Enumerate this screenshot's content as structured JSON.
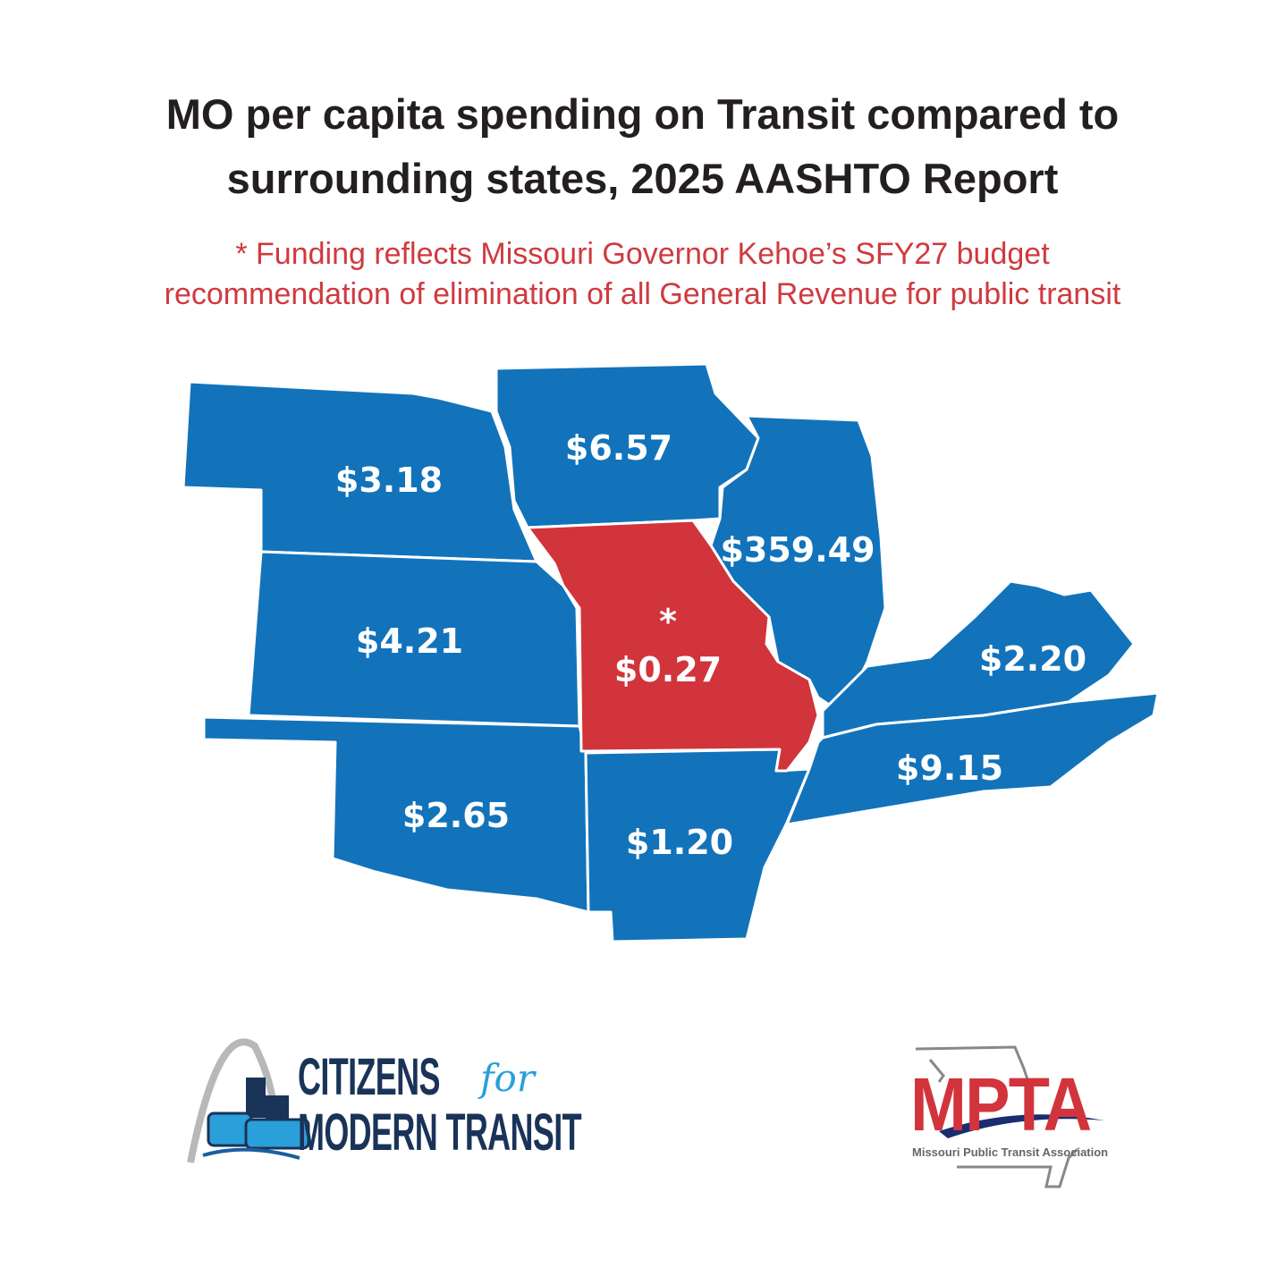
{
  "title_line1": "MO per capita spending on Transit compared to",
  "title_line2": "surrounding states, 2025 AASHTO Report",
  "subtitle_line1": "* Funding reflects Missouri Governor Kehoe’s SFY27 budget",
  "subtitle_line2": "recommendation of elimination of all General Revenue for public transit",
  "colors": {
    "state_fill": "#1273bb",
    "missouri_fill": "#d1343a",
    "title": "#231f20",
    "subtitle": "#cf3a3f"
  },
  "states": [
    {
      "name": "Nebraska",
      "value": "$3.18"
    },
    {
      "name": "Iowa",
      "value": "$6.57"
    },
    {
      "name": "Illinois",
      "value": "$359.49"
    },
    {
      "name": "Kansas",
      "value": "$4.21"
    },
    {
      "name": "Missouri",
      "value": "$0.27",
      "marker": "*"
    },
    {
      "name": "Kentucky",
      "value": "$2.20"
    },
    {
      "name": "Tennessee",
      "value": "$9.15"
    },
    {
      "name": "Oklahoma",
      "value": "$2.65"
    },
    {
      "name": "Arkansas",
      "value": "$1.20"
    }
  ],
  "logos": {
    "cmt_line1": "CITIZENS",
    "cmt_for": "for",
    "cmt_line2": "MODERN TRANSIT",
    "mpta_abbr": "MPTA",
    "mpta_name": "Missouri Public Transit Association"
  }
}
